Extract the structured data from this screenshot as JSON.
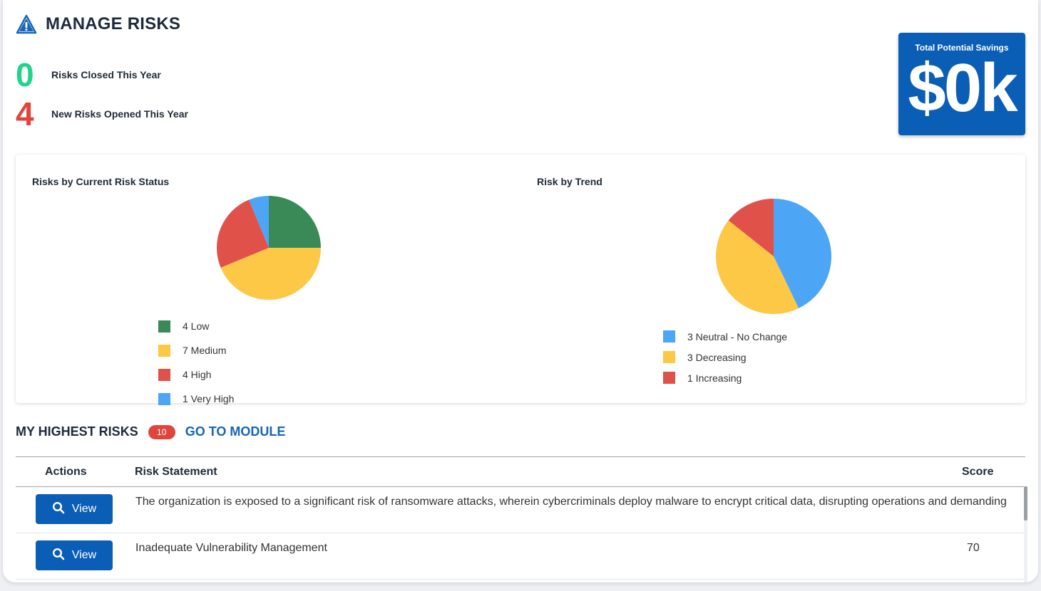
{
  "header": {
    "title": "MANAGE RISKS",
    "icon": "warning-triangle-icon"
  },
  "stats": {
    "closed": {
      "value": "0",
      "label": "Risks Closed This Year",
      "color": "#20d48a"
    },
    "opened": {
      "value": "4",
      "label": "New Risks Opened This Year",
      "color": "#e0453d"
    }
  },
  "savings": {
    "label": "Total Potential Savings",
    "value": "$0k",
    "color": "#0b5eb5"
  },
  "charts": {
    "status": {
      "title": "Risks by Current Risk Status",
      "legend": [
        "4 Low",
        "7 Medium",
        "4 High",
        "1 Very High"
      ]
    },
    "trend": {
      "title": "Risk by Trend",
      "legend": [
        "3 Neutral - No Change",
        "3 Decreasing",
        "1 Increasing"
      ]
    }
  },
  "chart_data": [
    {
      "type": "pie",
      "title": "Risks by Current Risk Status",
      "categories": [
        "Low",
        "Medium",
        "High",
        "Very High"
      ],
      "values": [
        4,
        7,
        4,
        1
      ],
      "colors": [
        "#3a8a58",
        "#fcc846",
        "#e0514a",
        "#4da6f5"
      ],
      "start": "top, clockwise"
    },
    {
      "type": "pie",
      "title": "Risk by Trend",
      "categories": [
        "Neutral - No Change",
        "Decreasing",
        "Increasing"
      ],
      "values": [
        3,
        3,
        1
      ],
      "colors": [
        "#4da6f5",
        "#fcc846",
        "#e0514a"
      ],
      "start": "top, clockwise"
    }
  ],
  "highest_risks": {
    "title": "MY HIGHEST RISKS",
    "count": "10",
    "link": "GO TO MODULE",
    "columns": {
      "actions": "Actions",
      "statement": "Risk Statement",
      "score": "Score"
    },
    "rows": [
      {
        "action": "View",
        "statement": "The organization is exposed to a significant risk of ransomware attacks, wherein cybercriminals deploy malware to encrypt critical data, disrupting operations and demanding",
        "score": ""
      },
      {
        "action": "View",
        "statement": "Inadequate Vulnerability Management",
        "score": "70"
      }
    ]
  }
}
